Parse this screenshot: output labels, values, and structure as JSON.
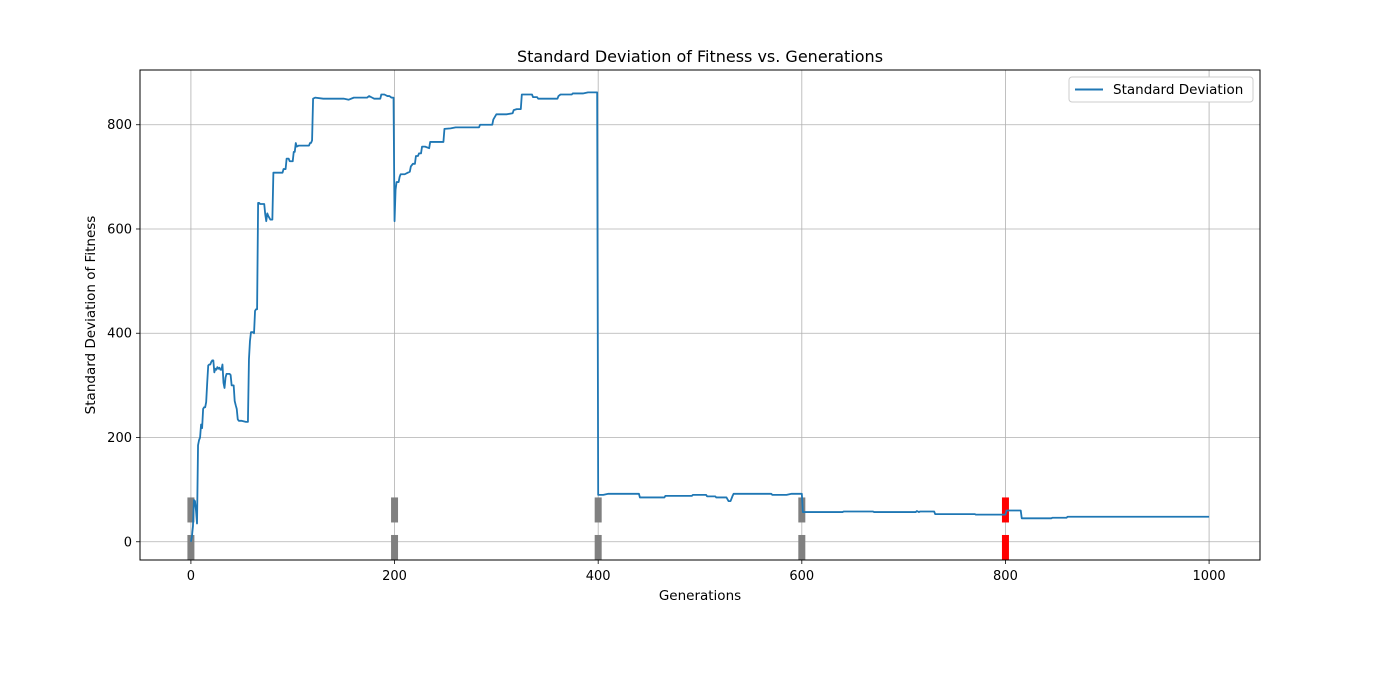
{
  "chart_data": {
    "type": "line",
    "title": "Standard Deviation of Fitness vs. Generations",
    "xlabel": "Generations",
    "ylabel": "Standard Deviation of Fitness",
    "xlim": [
      -50,
      1050
    ],
    "ylim": [
      -35,
      905
    ],
    "xticks": [
      0,
      200,
      400,
      600,
      800,
      1000
    ],
    "yticks": [
      0,
      200,
      400,
      600,
      800
    ],
    "grid": true,
    "legend_position": "top-right",
    "series": [
      {
        "name": "Standard Deviation",
        "color": "#1f77b4",
        "points": [
          [
            0,
            0
          ],
          [
            1,
            10
          ],
          [
            2,
            30
          ],
          [
            3,
            80
          ],
          [
            4,
            78
          ],
          [
            5,
            60
          ],
          [
            6,
            35
          ],
          [
            7,
            185
          ],
          [
            8,
            195
          ],
          [
            9,
            200
          ],
          [
            10,
            225
          ],
          [
            11,
            218
          ],
          [
            12,
            255
          ],
          [
            13,
            258
          ],
          [
            14,
            258
          ],
          [
            15,
            268
          ],
          [
            16,
            305
          ],
          [
            17,
            338
          ],
          [
            18,
            340
          ],
          [
            19,
            340
          ],
          [
            20,
            345
          ],
          [
            21,
            348
          ],
          [
            22,
            348
          ],
          [
            23,
            325
          ],
          [
            24,
            332
          ],
          [
            25,
            330
          ],
          [
            26,
            335
          ],
          [
            27,
            332
          ],
          [
            28,
            334
          ],
          [
            29,
            330
          ],
          [
            30,
            330
          ],
          [
            31,
            340
          ],
          [
            32,
            305
          ],
          [
            33,
            295
          ],
          [
            34,
            315
          ],
          [
            35,
            322
          ],
          [
            36,
            322
          ],
          [
            37,
            322
          ],
          [
            38,
            322
          ],
          [
            39,
            320
          ],
          [
            40,
            300
          ],
          [
            41,
            300
          ],
          [
            42,
            300
          ],
          [
            43,
            270
          ],
          [
            44,
            262
          ],
          [
            45,
            255
          ],
          [
            46,
            235
          ],
          [
            47,
            232
          ],
          [
            48,
            232
          ],
          [
            50,
            232
          ],
          [
            54,
            230
          ],
          [
            56,
            230
          ],
          [
            57,
            350
          ],
          [
            58,
            385
          ],
          [
            59,
            402
          ],
          [
            61,
            402
          ],
          [
            62,
            400
          ],
          [
            63,
            443
          ],
          [
            64,
            446
          ],
          [
            65,
            446
          ],
          [
            66,
            650
          ],
          [
            67,
            650
          ],
          [
            68,
            648
          ],
          [
            72,
            648
          ],
          [
            73,
            628
          ],
          [
            74,
            615
          ],
          [
            75,
            630
          ],
          [
            76,
            625
          ],
          [
            78,
            618
          ],
          [
            80,
            618
          ],
          [
            81,
            708
          ],
          [
            82,
            708
          ],
          [
            90,
            708
          ],
          [
            91,
            715
          ],
          [
            93,
            715
          ],
          [
            94,
            735
          ],
          [
            96,
            735
          ],
          [
            97,
            730
          ],
          [
            100,
            730
          ],
          [
            101,
            748
          ],
          [
            102,
            748
          ],
          [
            103,
            765
          ],
          [
            104,
            758
          ],
          [
            106,
            760
          ],
          [
            115,
            760
          ],
          [
            116,
            760
          ],
          [
            117,
            765
          ],
          [
            118,
            765
          ],
          [
            119,
            770
          ],
          [
            120,
            850
          ],
          [
            122,
            852
          ],
          [
            130,
            850
          ],
          [
            150,
            850
          ],
          [
            155,
            848
          ],
          [
            160,
            852
          ],
          [
            172,
            852
          ],
          [
            173,
            852
          ],
          [
            175,
            855
          ],
          [
            178,
            852
          ],
          [
            180,
            850
          ],
          [
            186,
            850
          ],
          [
            187,
            858
          ],
          [
            190,
            858
          ],
          [
            193,
            855
          ],
          [
            195,
            855
          ],
          [
            197,
            852
          ],
          [
            199,
            852
          ],
          [
            200,
            615
          ],
          [
            201,
            675
          ],
          [
            202,
            690
          ],
          [
            204,
            690
          ],
          [
            205,
            700
          ],
          [
            206,
            705
          ],
          [
            210,
            705
          ],
          [
            213,
            708
          ],
          [
            215,
            710
          ],
          [
            216,
            720
          ],
          [
            218,
            725
          ],
          [
            220,
            725
          ],
          [
            221,
            740
          ],
          [
            223,
            740
          ],
          [
            224,
            745
          ],
          [
            226,
            745
          ],
          [
            227,
            758
          ],
          [
            230,
            758
          ],
          [
            234,
            755
          ],
          [
            235,
            767
          ],
          [
            240,
            767
          ],
          [
            248,
            767
          ],
          [
            249,
            792
          ],
          [
            255,
            793
          ],
          [
            260,
            795
          ],
          [
            270,
            795
          ],
          [
            283,
            795
          ],
          [
            284,
            800
          ],
          [
            290,
            800
          ],
          [
            296,
            800
          ],
          [
            297,
            810
          ],
          [
            300,
            820
          ],
          [
            310,
            820
          ],
          [
            316,
            822
          ],
          [
            317,
            828
          ],
          [
            320,
            830
          ],
          [
            324,
            830
          ],
          [
            325,
            858
          ],
          [
            330,
            858
          ],
          [
            335,
            858
          ],
          [
            336,
            853
          ],
          [
            340,
            853
          ],
          [
            341,
            850
          ],
          [
            350,
            850
          ],
          [
            360,
            850
          ],
          [
            361,
            855
          ],
          [
            363,
            858
          ],
          [
            370,
            858
          ],
          [
            374,
            858
          ],
          [
            375,
            860
          ],
          [
            385,
            860
          ],
          [
            390,
            862
          ],
          [
            399,
            862
          ],
          [
            400,
            90
          ],
          [
            405,
            90
          ],
          [
            410,
            92
          ],
          [
            420,
            92
          ],
          [
            430,
            92
          ],
          [
            440,
            92
          ],
          [
            441,
            85
          ],
          [
            450,
            85
          ],
          [
            465,
            85
          ],
          [
            466,
            88
          ],
          [
            480,
            88
          ],
          [
            492,
            88
          ],
          [
            493,
            90
          ],
          [
            500,
            90
          ],
          [
            506,
            90
          ],
          [
            507,
            87
          ],
          [
            515,
            87
          ],
          [
            516,
            85
          ],
          [
            525,
            85
          ],
          [
            526,
            85
          ],
          [
            528,
            78
          ],
          [
            530,
            78
          ],
          [
            532,
            88
          ],
          [
            533,
            92
          ],
          [
            540,
            92
          ],
          [
            548,
            92
          ],
          [
            549,
            92
          ],
          [
            560,
            92
          ],
          [
            570,
            92
          ],
          [
            571,
            90
          ],
          [
            585,
            90
          ],
          [
            590,
            92
          ],
          [
            600,
            92
          ],
          [
            601,
            57
          ],
          [
            610,
            57
          ],
          [
            640,
            57
          ],
          [
            641,
            58
          ],
          [
            660,
            58
          ],
          [
            670,
            58
          ],
          [
            671,
            57
          ],
          [
            700,
            57
          ],
          [
            712,
            57
          ],
          [
            713,
            59
          ],
          [
            715,
            57
          ],
          [
            716,
            58
          ],
          [
            730,
            58
          ],
          [
            731,
            53
          ],
          [
            750,
            53
          ],
          [
            770,
            53
          ],
          [
            771,
            52
          ],
          [
            800,
            52
          ],
          [
            801,
            60
          ],
          [
            810,
            60
          ],
          [
            815,
            60
          ],
          [
            816,
            45
          ],
          [
            830,
            45
          ],
          [
            845,
            45
          ],
          [
            846,
            46
          ],
          [
            860,
            46
          ],
          [
            861,
            48
          ],
          [
            900,
            48
          ],
          [
            950,
            48
          ],
          [
            1000,
            48
          ]
        ]
      }
    ],
    "markers": [
      {
        "x": 0,
        "row": "upper",
        "color": "#808080"
      },
      {
        "x": 0,
        "row": "lower",
        "color": "#808080"
      },
      {
        "x": 200,
        "row": "upper",
        "color": "#808080"
      },
      {
        "x": 200,
        "row": "lower",
        "color": "#808080"
      },
      {
        "x": 400,
        "row": "upper",
        "color": "#808080"
      },
      {
        "x": 400,
        "row": "lower",
        "color": "#808080"
      },
      {
        "x": 600,
        "row": "upper",
        "color": "#808080"
      },
      {
        "x": 600,
        "row": "lower",
        "color": "#808080"
      },
      {
        "x": 800,
        "row": "upper",
        "color": "#ff0000"
      },
      {
        "x": 800,
        "row": "lower",
        "color": "#ff0000"
      }
    ]
  }
}
